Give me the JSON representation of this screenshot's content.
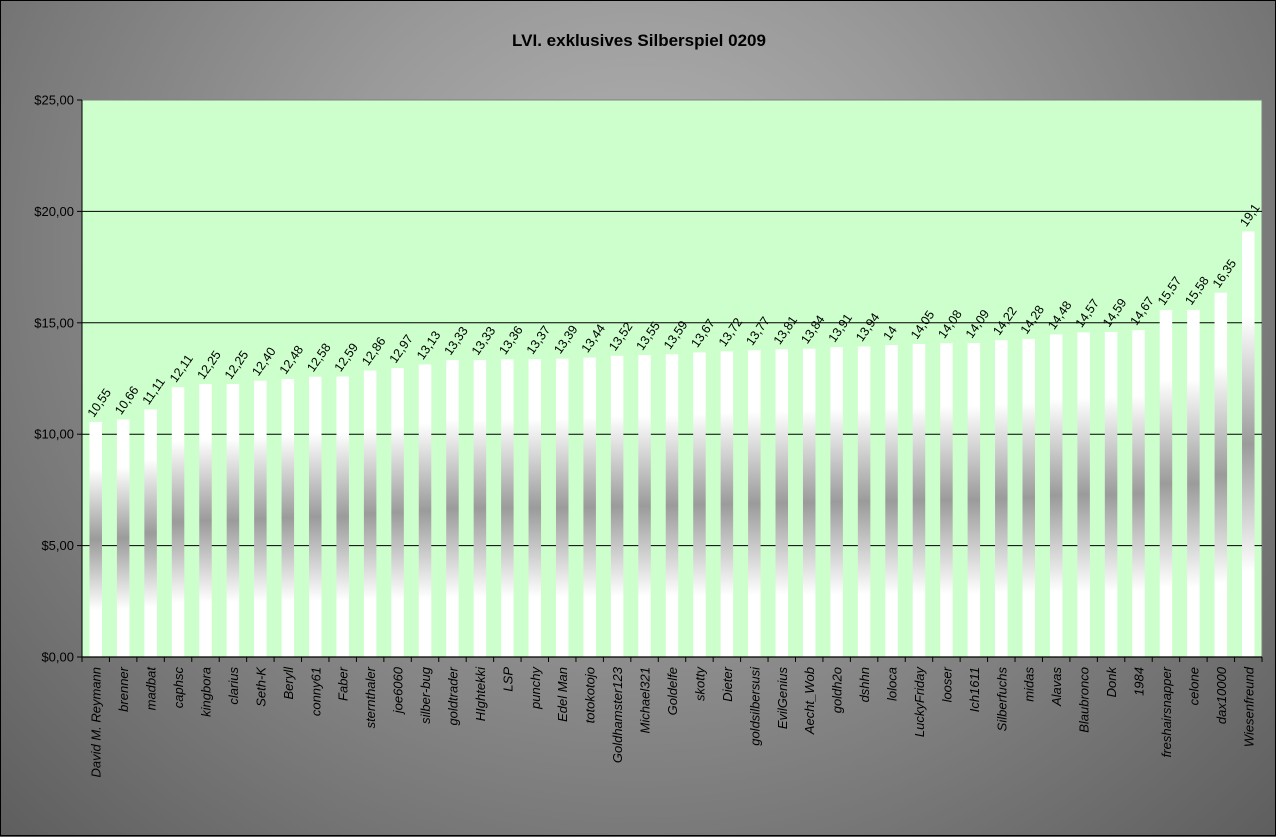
{
  "chart_data": {
    "type": "bar",
    "title": "LVI. exklusives Silberspiel 0209",
    "xlabel": "",
    "ylabel": "",
    "ylim": [
      0,
      25
    ],
    "yticks": [
      "$0,00",
      "$5,00",
      "$10,00",
      "$15,00",
      "$20,00",
      "$25,00"
    ],
    "grid": true,
    "plot_background": "#CCFFCC",
    "bar_style": "white-gray cylinder gradient",
    "categories": [
      "David M. Reymann",
      "brenner",
      "madbat",
      "caphsc",
      "kingbora",
      "clarius",
      "Seth-K",
      "Beryll",
      "conny61",
      "Faber",
      "sternthaler",
      "joe6060",
      "silber-bug",
      "goldtrader",
      "HIghtekki",
      "LSP",
      "punchy",
      "Edel Man",
      "totokotojo",
      "Goldhamster123",
      "Michael321",
      "Goldelfe",
      "skotty",
      "Dieter",
      "goldsilbersusi",
      "EvilGenius",
      "Aecht_Wob",
      "goldh2o",
      "dshhn",
      "loloca",
      "LuckyFriday",
      "looser",
      "Ich1611",
      "Silberfuchs",
      "midas",
      "Alavas",
      "Blaubronco",
      "Donk",
      "1984",
      "freshairsnapper",
      "celone",
      "dax10000",
      "Wiesenfreund"
    ],
    "values": [
      10.55,
      10.66,
      11.11,
      12.11,
      12.25,
      12.25,
      12.4,
      12.48,
      12.58,
      12.59,
      12.86,
      12.97,
      13.13,
      13.33,
      13.33,
      13.36,
      13.37,
      13.39,
      13.44,
      13.52,
      13.55,
      13.59,
      13.67,
      13.72,
      13.77,
      13.81,
      13.84,
      13.91,
      13.94,
      14,
      14.05,
      14.08,
      14.09,
      14.22,
      14.28,
      14.48,
      14.57,
      14.59,
      14.67,
      15.57,
      15.58,
      16.35,
      19.1
    ],
    "data_labels": [
      "10,55",
      "10,66",
      "11,11",
      "12,11",
      "12,25",
      "12,25",
      "12,40",
      "12,48",
      "12,58",
      "12,59",
      "12,86",
      "12,97",
      "13,13",
      "13,33",
      "13,33",
      "13,36",
      "13,37",
      "13,39",
      "13,44",
      "13,52",
      "13,55",
      "13,59",
      "13,67",
      "13,72",
      "13,77",
      "13,81",
      "13,84",
      "13,91",
      "13,94",
      "14",
      "14,05",
      "14,08",
      "14,09",
      "14,22",
      "14,28",
      "14,48",
      "14,57",
      "14,59",
      "14,67",
      "15,57",
      "15,58",
      "16,35",
      "19,1"
    ]
  }
}
